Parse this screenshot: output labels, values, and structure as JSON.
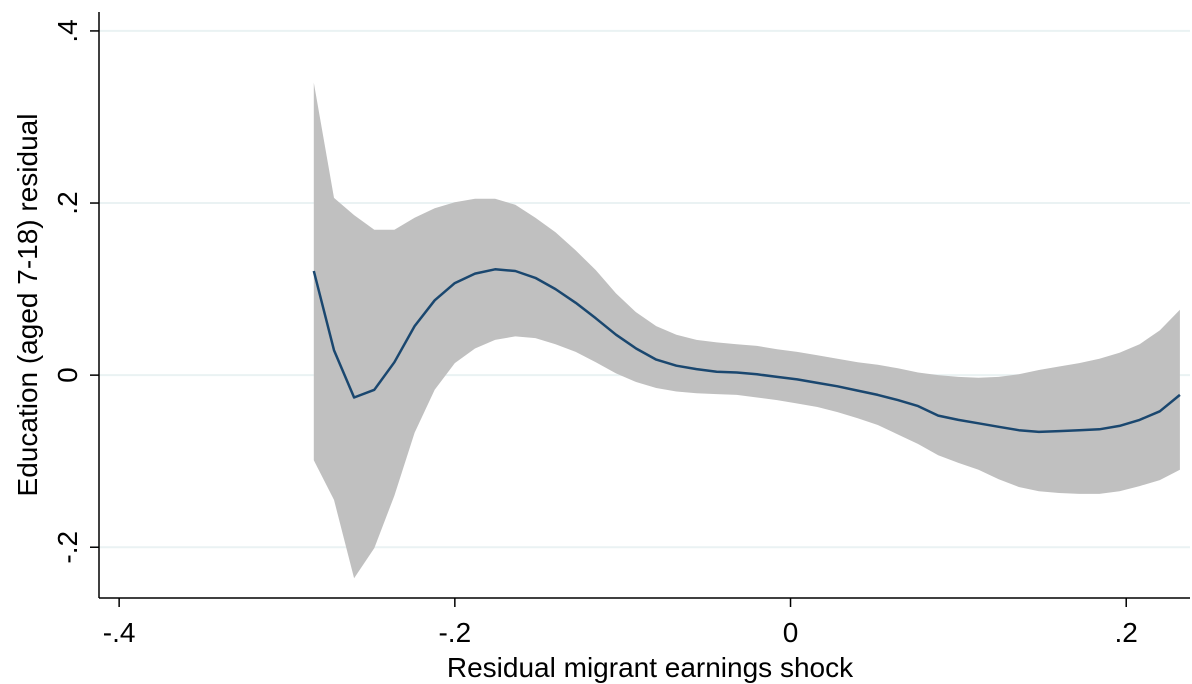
{
  "chart_data": {
    "type": "line",
    "xlabel": "Residual migrant earnings shock",
    "ylabel": "Education (aged 7-18) residual",
    "x": [
      -0.284,
      -0.272,
      -0.26,
      -0.248,
      -0.236,
      -0.224,
      -0.212,
      -0.2,
      -0.188,
      -0.176,
      -0.164,
      -0.152,
      -0.14,
      -0.128,
      -0.116,
      -0.104,
      -0.092,
      -0.08,
      -0.068,
      -0.056,
      -0.044,
      -0.032,
      -0.02,
      -0.008,
      0.004,
      0.016,
      0.028,
      0.04,
      0.052,
      0.064,
      0.076,
      0.088,
      0.1,
      0.112,
      0.124,
      0.136,
      0.148,
      0.16,
      0.172,
      0.184,
      0.196,
      0.208,
      0.22,
      0.232
    ],
    "series": [
      {
        "color": "#1a476f",
        "values": [
          0.121,
          0.029,
          -0.026,
          -0.017,
          0.015,
          0.057,
          0.087,
          0.107,
          0.118,
          0.123,
          0.121,
          0.113,
          0.1,
          0.084,
          0.066,
          0.047,
          0.031,
          0.018,
          0.011,
          0.007,
          0.004,
          0.003,
          0.001,
          -0.002,
          -0.005,
          -0.009,
          -0.013,
          -0.018,
          -0.023,
          -0.029,
          -0.036,
          -0.047,
          -0.052,
          -0.056,
          -0.06,
          -0.064,
          -0.066,
          -0.065,
          -0.064,
          -0.063,
          -0.059,
          -0.052,
          -0.042,
          -0.023
        ]
      }
    ],
    "band": {
      "color": "#c0c0c0",
      "upper": [
        0.34,
        0.206,
        0.186,
        0.169,
        0.169,
        0.183,
        0.194,
        0.201,
        0.205,
        0.205,
        0.198,
        0.183,
        0.166,
        0.145,
        0.122,
        0.095,
        0.073,
        0.057,
        0.047,
        0.041,
        0.038,
        0.036,
        0.034,
        0.03,
        0.027,
        0.023,
        0.019,
        0.015,
        0.012,
        0.008,
        0.003,
        0,
        -0.002,
        -0.003,
        -0.002,
        0.001,
        0.006,
        0.01,
        0.014,
        0.019,
        0.026,
        0.036,
        0.052,
        0.076
      ],
      "lower": [
        -0.099,
        -0.145,
        -0.236,
        -0.201,
        -0.14,
        -0.067,
        -0.017,
        0.014,
        0.031,
        0.041,
        0.045,
        0.043,
        0.036,
        0.027,
        0.015,
        0.002,
        -0.008,
        -0.015,
        -0.019,
        -0.021,
        -0.022,
        -0.023,
        -0.026,
        -0.029,
        -0.033,
        -0.037,
        -0.043,
        -0.05,
        -0.058,
        -0.069,
        -0.08,
        -0.093,
        -0.102,
        -0.11,
        -0.121,
        -0.13,
        -0.135,
        -0.137,
        -0.138,
        -0.138,
        -0.135,
        -0.129,
        -0.122,
        -0.11
      ]
    },
    "xlim": [
      -0.412,
      0.238
    ],
    "ylim": [
      -0.259,
      0.422
    ],
    "xticks": [
      {
        "value": -0.4,
        "label": "-.4"
      },
      {
        "value": -0.2,
        "label": "-.2"
      },
      0,
      {
        "value": 0.2,
        "label": ".2"
      }
    ],
    "yticks": [
      {
        "value": -0.2,
        "label": "-.2"
      },
      0,
      {
        "value": 0.2,
        "label": ".2"
      },
      {
        "value": 0.4,
        "label": ".4"
      }
    ],
    "grid": true,
    "grid_color": "#eaf2f3"
  }
}
